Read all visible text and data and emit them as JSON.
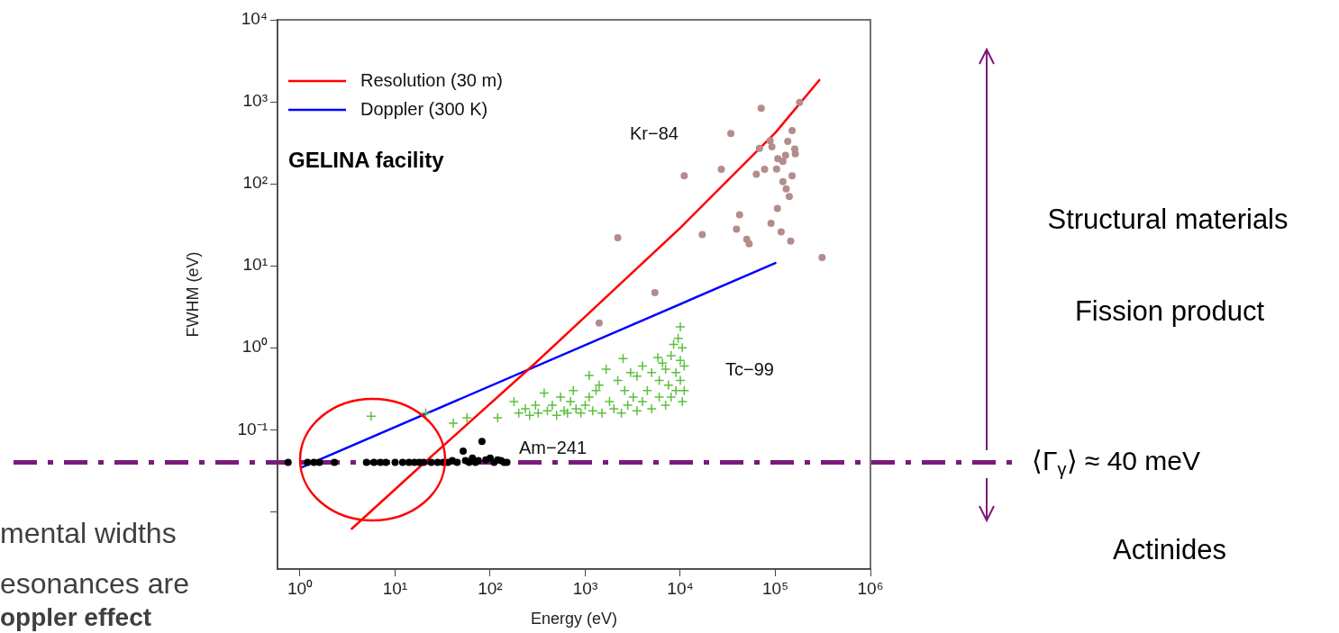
{
  "chart_data": {
    "type": "scatter",
    "xlabel": "Energy (eV)",
    "ylabel": "FWHM (eV)",
    "log": "xy",
    "legend": "top left",
    "xlim": [
      0.58,
      1000000
    ],
    "ylim": [
      0.002,
      10000
    ],
    "xticks": [
      {
        "value": 1,
        "label": "10⁰"
      },
      {
        "value": 10,
        "label": "10¹"
      },
      {
        "value": 100,
        "label": "10²"
      },
      {
        "value": 1000,
        "label": "10³"
      },
      {
        "value": 10000,
        "label": "10⁴"
      },
      {
        "value": 100000,
        "label": "10⁵"
      },
      {
        "value": 1000000,
        "label": "10⁶"
      }
    ],
    "yticks": [
      {
        "value": 0.01,
        "label": null
      },
      {
        "value": 0.1,
        "label": "10⁻¹"
      },
      {
        "value": 1,
        "label": "10⁰"
      },
      {
        "value": 10,
        "label": "10¹"
      },
      {
        "value": 100,
        "label": "10²"
      },
      {
        "value": 1000,
        "label": "10³"
      },
      {
        "value": 10000,
        "label": "10⁴"
      }
    ],
    "series": [
      {
        "type": "line",
        "name": "Resolution (30 m)",
        "color": "#ff0000",
        "marker": "none",
        "x": [
          3.5,
          20,
          290,
          1000,
          10000,
          100000,
          290000
        ],
        "values": [
          0.0062,
          0.039,
          0.63,
          2.4,
          29,
          420,
          1840
        ]
      },
      {
        "type": "line",
        "name": "Doppler (300 K)",
        "color": "#0000ff",
        "marker": "none",
        "x": [
          1.05,
          100000
        ],
        "values": [
          0.035,
          10.8
        ]
      },
      {
        "color": "#b48c8c",
        "marker": "circle",
        "x": [
          71000,
          180000,
          34000,
          150000,
          88000,
          135000,
          68000,
          92000,
          160000,
          162000,
          106000,
          128000,
          120000,
          11000,
          27000,
          63000,
          77000,
          103000,
          150000,
          120000,
          130000,
          140000,
          105000,
          42000,
          90000,
          39000,
          115000,
          17000,
          50000,
          53000,
          145000,
          310000,
          2200,
          5400,
          1400
        ],
        "values": [
          835,
          980,
          410,
          445,
          335,
          330,
          270,
          283,
          265,
          233,
          202,
          222,
          187,
          125,
          150,
          131,
          150,
          151,
          125,
          106,
          87,
          70,
          50,
          42,
          33,
          28,
          26,
          24,
          21,
          18.6,
          20,
          12.6,
          22,
          4.7,
          2.0
        ]
      },
      {
        "color": "#5cc040",
        "marker": "cross",
        "x": [
          5.6,
          21,
          41,
          57,
          120,
          178,
          200,
          235,
          260,
          300,
          320,
          370,
          400,
          450,
          500,
          550,
          600,
          650,
          700,
          750,
          800,
          900,
          1000,
          1100,
          1100,
          1200,
          1300,
          1400,
          1500,
          1660,
          1800,
          2000,
          2200,
          2400,
          2500,
          2600,
          2800,
          3000,
          3200,
          3500,
          3500,
          4000,
          4000,
          4500,
          5000,
          5000,
          5800,
          6000,
          6000,
          6500,
          7000,
          7000,
          7500,
          8000,
          8000,
          8500,
          9000,
          9000,
          9500,
          10000,
          10000,
          10500,
          10500,
          11000,
          11000,
          10000
        ],
        "values": [
          0.146,
          0.16,
          0.12,
          0.14,
          0.14,
          0.22,
          0.16,
          0.18,
          0.15,
          0.2,
          0.16,
          0.28,
          0.17,
          0.2,
          0.15,
          0.25,
          0.17,
          0.16,
          0.22,
          0.3,
          0.18,
          0.16,
          0.2,
          0.46,
          0.25,
          0.17,
          0.3,
          0.35,
          0.16,
          0.55,
          0.22,
          0.18,
          0.4,
          0.16,
          0.74,
          0.3,
          0.2,
          0.5,
          0.25,
          0.17,
          0.45,
          0.22,
          0.6,
          0.3,
          0.18,
          0.5,
          0.76,
          0.25,
          0.4,
          0.65,
          0.2,
          0.55,
          0.35,
          0.8,
          0.25,
          1.1,
          0.5,
          0.3,
          1.3,
          0.7,
          0.4,
          1.0,
          0.22,
          0.6,
          0.3,
          1.8
        ]
      },
      {
        "color": "#000000",
        "marker": "circle",
        "x": [
          0.75,
          1.2,
          1.4,
          1.6,
          2.3,
          5,
          6,
          7,
          8,
          10,
          12,
          14,
          16,
          18,
          20,
          24,
          28,
          32,
          36,
          40,
          45,
          52,
          55,
          60,
          65,
          70,
          75,
          82,
          90,
          100,
          110,
          120,
          130,
          140,
          150
        ],
        "values": [
          0.04,
          0.04,
          0.04,
          0.04,
          0.04,
          0.04,
          0.04,
          0.04,
          0.04,
          0.04,
          0.04,
          0.04,
          0.04,
          0.04,
          0.04,
          0.04,
          0.04,
          0.04,
          0.04,
          0.042,
          0.04,
          0.055,
          0.042,
          0.04,
          0.045,
          0.04,
          0.042,
          0.072,
          0.043,
          0.045,
          0.04,
          0.043,
          0.042,
          0.04,
          0.04
        ]
      }
    ],
    "ref_lines": [
      {
        "axis": "y",
        "value": 0.04,
        "label": "⟨Γ$_{γ}$⟩ ≈ 40 meV",
        "color": "#7a1a7a",
        "line_style": "dashed"
      }
    ],
    "annotations": [
      "GELINA facility",
      "Structural materials",
      "Fission product",
      "Actinides",
      "mental widths",
      "esonances are",
      "oppler effect",
      "Kr−84",
      "Tc−99",
      "Am−241"
    ]
  }
}
